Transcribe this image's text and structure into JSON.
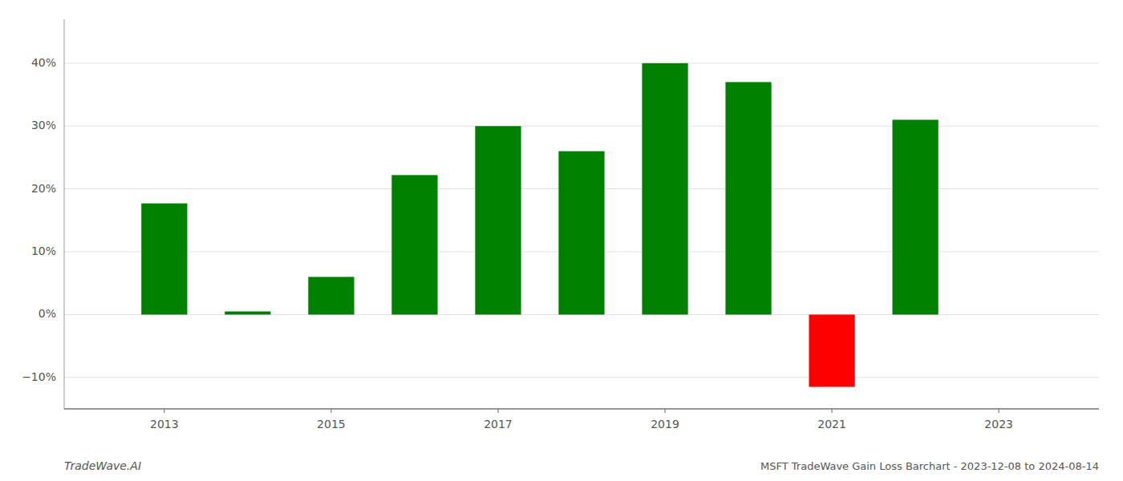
{
  "chart_data": {
    "type": "bar",
    "title": "MSFT TradeWave Gain Loss Barchart - 2023-12-08 to 2024-08-14",
    "annotations": [
      "TradeWave.AI"
    ],
    "x": [
      2013,
      2014,
      2015,
      2016,
      2017,
      2018,
      2019,
      2020,
      2021,
      2022
    ],
    "values": [
      17.7,
      0.5,
      6.0,
      22.2,
      30.0,
      26.0,
      40.0,
      37.0,
      -11.5,
      31.0
    ],
    "colors": [
      "#008000",
      "#008000",
      "#008000",
      "#008000",
      "#008000",
      "#008000",
      "#008000",
      "#008000",
      "#ff0000",
      "#008000"
    ],
    "xlim": [
      2011.8,
      2024.2
    ],
    "xticks": [
      2013,
      2015,
      2017,
      2019,
      2021,
      2023
    ],
    "ylim": [
      -15,
      47
    ],
    "yticks": [
      {
        "value": -10,
        "label": "−10%"
      },
      {
        "value": 0,
        "label": "0%"
      },
      {
        "value": 10,
        "label": "10%"
      },
      {
        "value": 20,
        "label": "20%"
      },
      {
        "value": 30,
        "label": "30%"
      },
      {
        "value": 40,
        "label": "40%"
      }
    ],
    "grid": true
  }
}
